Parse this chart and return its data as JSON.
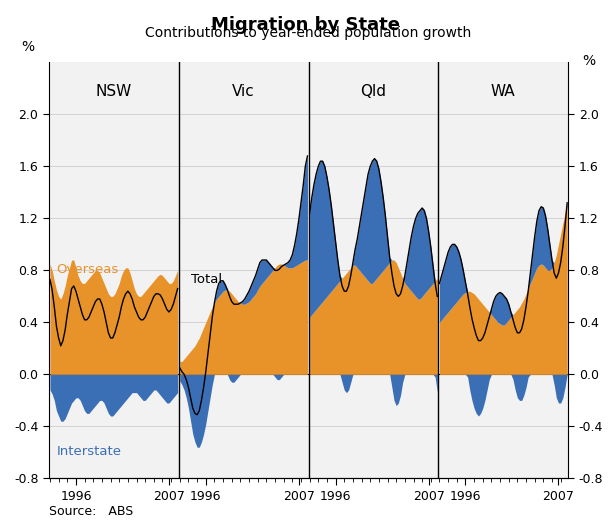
{
  "title": "Migration by State",
  "subtitle": "Contributions to year-ended population growth",
  "source": "Source:   ABS",
  "ylabel_left": "%",
  "ylabel_right": "%",
  "ylim": [
    -0.8,
    2.4
  ],
  "yticks": [
    -0.8,
    -0.4,
    0.0,
    0.4,
    0.8,
    1.2,
    1.6,
    2.0
  ],
  "ytick_labels": [
    "-0.8",
    "-0.4",
    "0.0",
    "0.4",
    "0.8",
    "1.2",
    "1.6",
    "2.0"
  ],
  "states": [
    "NSW",
    "Vic",
    "Qld",
    "WA"
  ],
  "overseas_color": "#E8922A",
  "interstate_color": "#3B6FB5",
  "total_color": "#000000",
  "background_color": "#F2F2F2",
  "n_quarters": 60,
  "tick_1996_idx": 12,
  "tick_2007_idx": 56
}
